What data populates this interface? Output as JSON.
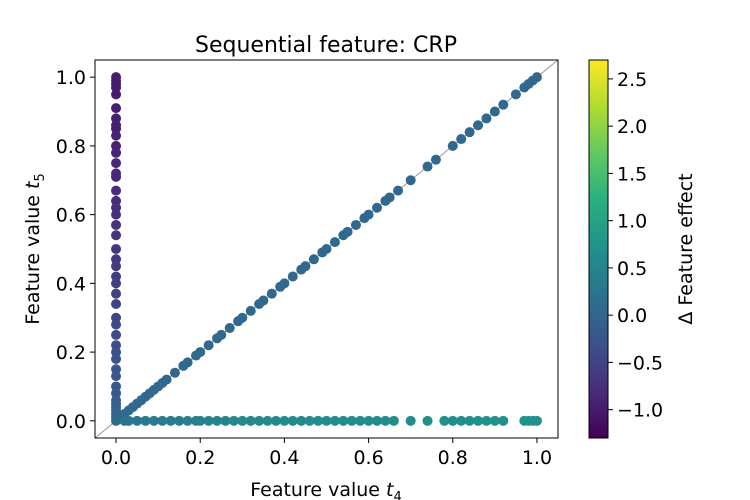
{
  "chart_data": {
    "type": "scatter",
    "title": "Sequential feature: CRP",
    "xlabel_main": "Feature value ",
    "xlabel_var": "t",
    "xlabel_sub": "4",
    "ylabel_main": "Feature value ",
    "ylabel_var": "t",
    "ylabel_sub": "5",
    "xlim": [
      -0.05,
      1.05
    ],
    "ylim": [
      -0.05,
      1.05
    ],
    "xticks": [
      0.0,
      0.2,
      0.4,
      0.6,
      0.8,
      1.0
    ],
    "yticks": [
      0.0,
      0.2,
      0.4,
      0.6,
      0.8,
      1.0
    ],
    "xtick_labels": [
      "0.0",
      "0.2",
      "0.4",
      "0.6",
      "0.8",
      "1.0"
    ],
    "ytick_labels": [
      "0.0",
      "0.2",
      "0.4",
      "0.6",
      "0.8",
      "1.0"
    ],
    "grid": false,
    "reference_line": {
      "from": [
        -0.05,
        -0.05
      ],
      "to": [
        1.05,
        1.05
      ],
      "color": "#999999"
    },
    "colormap": "viridis",
    "colorbar": {
      "label_prefix": "Δ",
      "label": " Feature effect",
      "range": [
        -1.3,
        2.7
      ],
      "ticks": [
        -1.0,
        -0.5,
        0.0,
        0.5,
        1.0,
        1.5,
        2.0,
        2.5
      ],
      "tick_labels": [
        "−1.0",
        "−0.5",
        "0.0",
        "0.5",
        "1.0",
        "1.5",
        "2.0",
        "2.5"
      ]
    },
    "series": [
      {
        "x": [
          0,
          0,
          0,
          0,
          0,
          0,
          0,
          0,
          0,
          0,
          0,
          0,
          0,
          0,
          0,
          0,
          0,
          0,
          0,
          0,
          0,
          0,
          0,
          0,
          0,
          0,
          0,
          0,
          0,
          0,
          0,
          0,
          0,
          0,
          0,
          0,
          0,
          0,
          0,
          0,
          0,
          0,
          0,
          0,
          0
        ],
        "y": [
          1.0,
          0.99,
          0.98,
          0.97,
          0.95,
          0.91,
          0.88,
          0.86,
          0.85,
          0.83,
          0.8,
          0.78,
          0.75,
          0.72,
          0.71,
          0.67,
          0.64,
          0.62,
          0.6,
          0.57,
          0.54,
          0.5,
          0.47,
          0.45,
          0.42,
          0.4,
          0.37,
          0.34,
          0.3,
          0.28,
          0.25,
          0.22,
          0.2,
          0.18,
          0.15,
          0.13,
          0.1,
          0.08,
          0.06,
          0.05,
          0.04,
          0.03,
          0.02,
          0.01,
          0.0
        ],
        "c": [
          -1.0,
          -1.0,
          -1.0,
          -1.0,
          -1.0,
          -0.95,
          -0.95,
          -0.95,
          -0.95,
          -0.9,
          -0.9,
          -0.9,
          -0.85,
          -0.85,
          -0.85,
          -0.8,
          -0.8,
          -0.75,
          -0.75,
          -0.7,
          -0.7,
          -0.65,
          -0.65,
          -0.6,
          -0.6,
          -0.55,
          -0.55,
          -0.5,
          -0.45,
          -0.4,
          -0.4,
          -0.35,
          -0.3,
          -0.3,
          -0.25,
          -0.2,
          -0.2,
          -0.15,
          -0.1,
          -0.1,
          -0.05,
          -0.05,
          0.0,
          0.0,
          0.05
        ]
      },
      {
        "x": [
          0.01,
          0.02,
          0.03,
          0.04,
          0.05,
          0.06,
          0.07,
          0.08,
          0.09,
          0.1,
          0.11,
          0.12,
          0.14,
          0.16,
          0.17,
          0.19,
          0.2,
          0.22,
          0.24,
          0.25,
          0.27,
          0.29,
          0.3,
          0.32,
          0.34,
          0.35,
          0.37,
          0.39,
          0.4,
          0.42,
          0.44,
          0.45,
          0.47,
          0.49,
          0.5,
          0.52,
          0.54,
          0.55,
          0.57,
          0.59,
          0.6,
          0.62,
          0.64,
          0.65,
          0.67,
          0.7,
          0.74,
          0.76,
          0.8,
          0.82,
          0.84,
          0.86,
          0.88,
          0.9,
          0.92,
          0.95,
          0.97,
          0.98,
          0.99,
          1.0
        ],
        "y": [
          0.01,
          0.02,
          0.03,
          0.04,
          0.05,
          0.06,
          0.07,
          0.08,
          0.09,
          0.1,
          0.11,
          0.12,
          0.14,
          0.16,
          0.17,
          0.19,
          0.2,
          0.22,
          0.24,
          0.25,
          0.27,
          0.29,
          0.3,
          0.32,
          0.34,
          0.35,
          0.37,
          0.39,
          0.4,
          0.42,
          0.44,
          0.45,
          0.47,
          0.49,
          0.5,
          0.52,
          0.54,
          0.55,
          0.57,
          0.59,
          0.6,
          0.62,
          0.64,
          0.65,
          0.67,
          0.7,
          0.74,
          0.76,
          0.8,
          0.82,
          0.84,
          0.86,
          0.88,
          0.9,
          0.92,
          0.95,
          0.97,
          0.98,
          0.99,
          1.0
        ],
        "c": [
          0.05,
          0.05,
          0.05,
          0.05,
          0.05,
          0.05,
          0.05,
          0.05,
          0.05,
          0.05,
          0.05,
          0.05,
          0.05,
          0.05,
          0.05,
          0.05,
          0.05,
          0.05,
          0.05,
          0.05,
          0.05,
          0.05,
          0.05,
          0.05,
          0.05,
          0.05,
          0.05,
          0.05,
          0.05,
          0.05,
          0.05,
          0.05,
          0.05,
          0.05,
          0.05,
          0.05,
          0.05,
          0.05,
          0.05,
          0.05,
          0.05,
          0.05,
          0.05,
          0.05,
          0.05,
          0.05,
          0.05,
          0.05,
          0.05,
          0.05,
          0.05,
          0.05,
          0.05,
          0.05,
          0.05,
          0.05,
          0.05,
          0.05,
          0.05,
          0.05
        ]
      },
      {
        "x": [
          0.02,
          0.03,
          0.05,
          0.07,
          0.09,
          0.11,
          0.13,
          0.15,
          0.17,
          0.19,
          0.2,
          0.22,
          0.24,
          0.26,
          0.28,
          0.3,
          0.32,
          0.34,
          0.36,
          0.38,
          0.4,
          0.42,
          0.44,
          0.46,
          0.48,
          0.5,
          0.52,
          0.54,
          0.56,
          0.58,
          0.6,
          0.62,
          0.64,
          0.66,
          0.7,
          0.74,
          0.78,
          0.8,
          0.82,
          0.84,
          0.86,
          0.88,
          0.9,
          0.92,
          0.97,
          0.98,
          0.99,
          1.0
        ],
        "y": [
          0,
          0,
          0,
          0,
          0,
          0,
          0,
          0,
          0,
          0,
          0,
          0,
          0,
          0,
          0,
          0,
          0,
          0,
          0,
          0,
          0,
          0,
          0,
          0,
          0,
          0,
          0,
          0,
          0,
          0,
          0,
          0,
          0,
          0,
          0,
          0,
          0,
          0,
          0,
          0,
          0,
          0,
          0,
          0,
          0,
          0,
          0,
          0
        ],
        "c": [
          0.2,
          0.25,
          0.3,
          0.3,
          0.35,
          0.35,
          0.4,
          0.4,
          0.45,
          0.45,
          0.45,
          0.5,
          0.5,
          0.5,
          0.55,
          0.55,
          0.55,
          0.55,
          0.6,
          0.6,
          0.6,
          0.6,
          0.6,
          0.62,
          0.62,
          0.62,
          0.62,
          0.65,
          0.65,
          0.65,
          0.65,
          0.65,
          0.65,
          0.65,
          0.65,
          0.68,
          0.68,
          0.68,
          0.68,
          0.68,
          0.68,
          0.7,
          0.7,
          0.7,
          0.7,
          0.72,
          0.72,
          0.72
        ]
      }
    ]
  }
}
